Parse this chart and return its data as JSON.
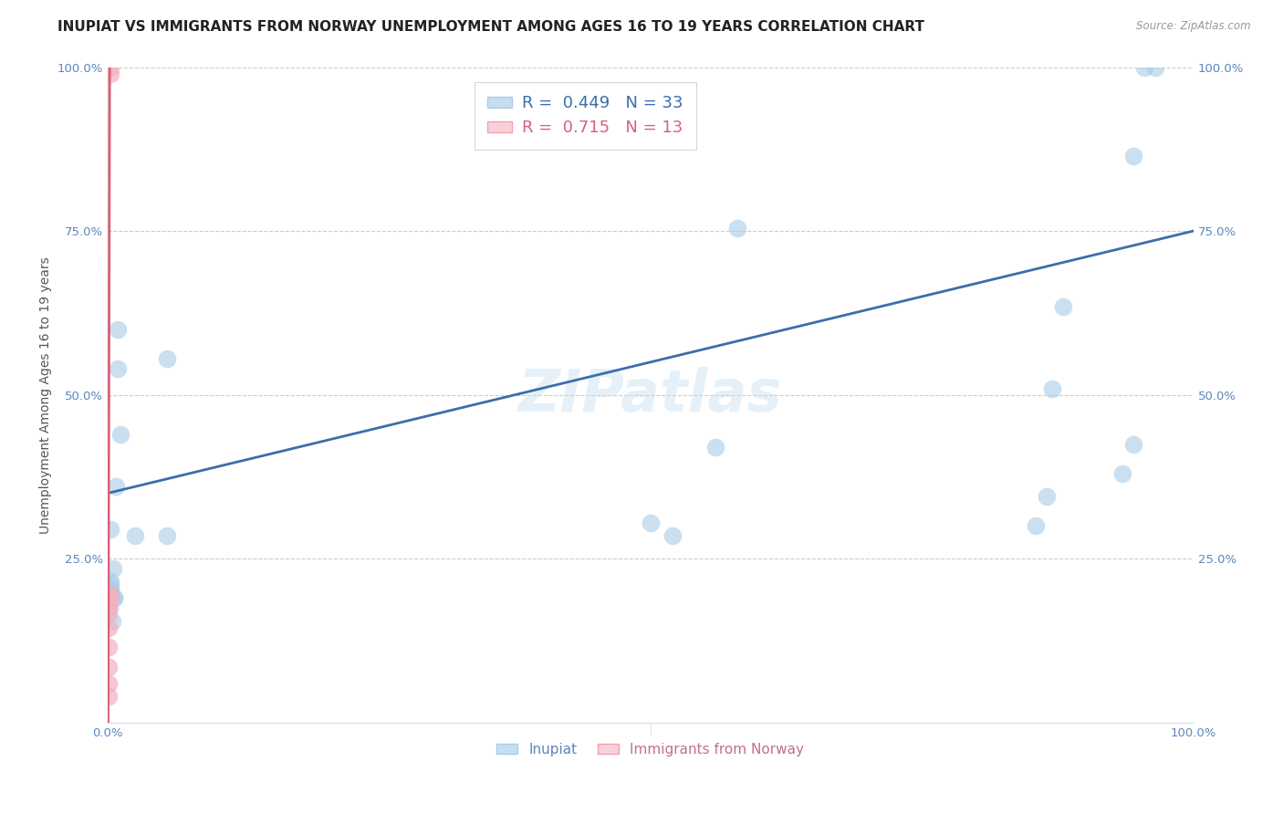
{
  "title": "INUPIAT VS IMMIGRANTS FROM NORWAY UNEMPLOYMENT AMONG AGES 16 TO 19 YEARS CORRELATION CHART",
  "source": "Source: ZipAtlas.com",
  "ylabel": "Unemployment Among Ages 16 to 19 years",
  "xlim": [
    0,
    1.0
  ],
  "ylim": [
    0,
    1.0
  ],
  "xtick_labels": [
    "0.0%",
    "",
    "",
    "",
    "",
    "",
    "",
    "",
    "",
    "",
    "100.0%"
  ],
  "ytick_labels": [
    "",
    "25.0%",
    "50.0%",
    "75.0%",
    "100.0%"
  ],
  "inupiat_x": [
    0.002,
    0.002,
    0.002,
    0.003,
    0.003,
    0.003,
    0.003,
    0.003,
    0.003,
    0.004,
    0.005,
    0.006,
    0.006,
    0.008,
    0.009,
    0.009,
    0.012,
    0.025,
    0.055,
    0.055,
    0.5,
    0.52,
    0.56,
    0.58,
    0.855,
    0.865,
    0.87,
    0.88,
    0.935,
    0.945,
    0.945,
    0.955,
    0.965
  ],
  "inupiat_y": [
    0.175,
    0.19,
    0.195,
    0.195,
    0.2,
    0.205,
    0.21,
    0.215,
    0.295,
    0.155,
    0.235,
    0.19,
    0.19,
    0.36,
    0.54,
    0.6,
    0.44,
    0.285,
    0.285,
    0.555,
    0.305,
    0.285,
    0.42,
    0.755,
    0.3,
    0.345,
    0.51,
    0.635,
    0.38,
    0.425,
    0.865,
    1.0,
    1.0
  ],
  "norway_x": [
    0.001,
    0.001,
    0.001,
    0.001,
    0.001,
    0.001,
    0.001,
    0.001,
    0.002,
    0.002,
    0.002,
    0.003,
    0.003
  ],
  "norway_y": [
    0.04,
    0.06,
    0.085,
    0.115,
    0.145,
    0.165,
    0.175,
    0.185,
    0.185,
    0.195,
    0.195,
    0.99,
    1.0
  ],
  "inupiat_R": 0.449,
  "inupiat_N": 33,
  "norway_R": 0.715,
  "norway_N": 13,
  "blue_color": "#a8cce8",
  "pink_color": "#f4b0c0",
  "blue_line_color": "#3a6faa",
  "pink_line_color": "#d9607a",
  "legend_box_blue": "#c5dff0",
  "legend_box_pink": "#f9d0da",
  "watermark": "ZIPatlas",
  "title_fontsize": 11,
  "axis_label_fontsize": 10,
  "tick_fontsize": 9.5,
  "legend_fontsize": 13
}
